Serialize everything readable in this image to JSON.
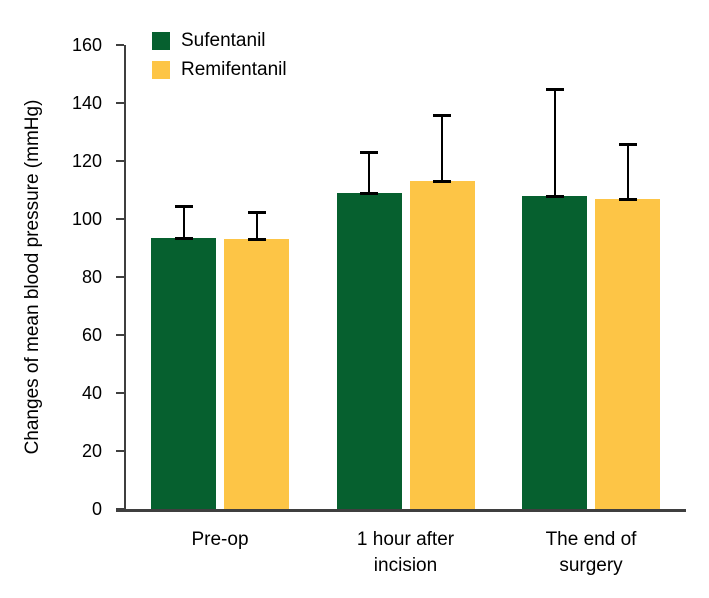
{
  "chart_data": {
    "type": "bar",
    "title": "",
    "ylabel": "Changes of mean blood pressure (mmHg)",
    "xlabel": "",
    "categories": [
      "Pre-op",
      "1 hour after incision",
      "The end of surgery"
    ],
    "category_lines": [
      [
        "Pre-op"
      ],
      [
        "1 hour after",
        "incision"
      ],
      [
        "The end of",
        "surgery"
      ]
    ],
    "series": [
      {
        "name": "Sufentanil",
        "color": "#06602f",
        "values": [
          93.5,
          109,
          108
        ],
        "error_plus": [
          11,
          14,
          37
        ]
      },
      {
        "name": "Remifentanil",
        "color": "#fdc546",
        "values": [
          93,
          113,
          107
        ],
        "error_plus": [
          9.5,
          23,
          19
        ]
      }
    ],
    "ylim": [
      0,
      160
    ],
    "yticks": [
      0,
      20,
      40,
      60,
      80,
      100,
      120,
      140,
      160
    ],
    "grid": false,
    "legend_position": "top-left-inside",
    "error_bars": "upper-only-with-caps",
    "colors": {
      "axis": "#3f3f3f",
      "error_bar": "#000000",
      "text": "#000000",
      "background": "#ffffff"
    }
  }
}
